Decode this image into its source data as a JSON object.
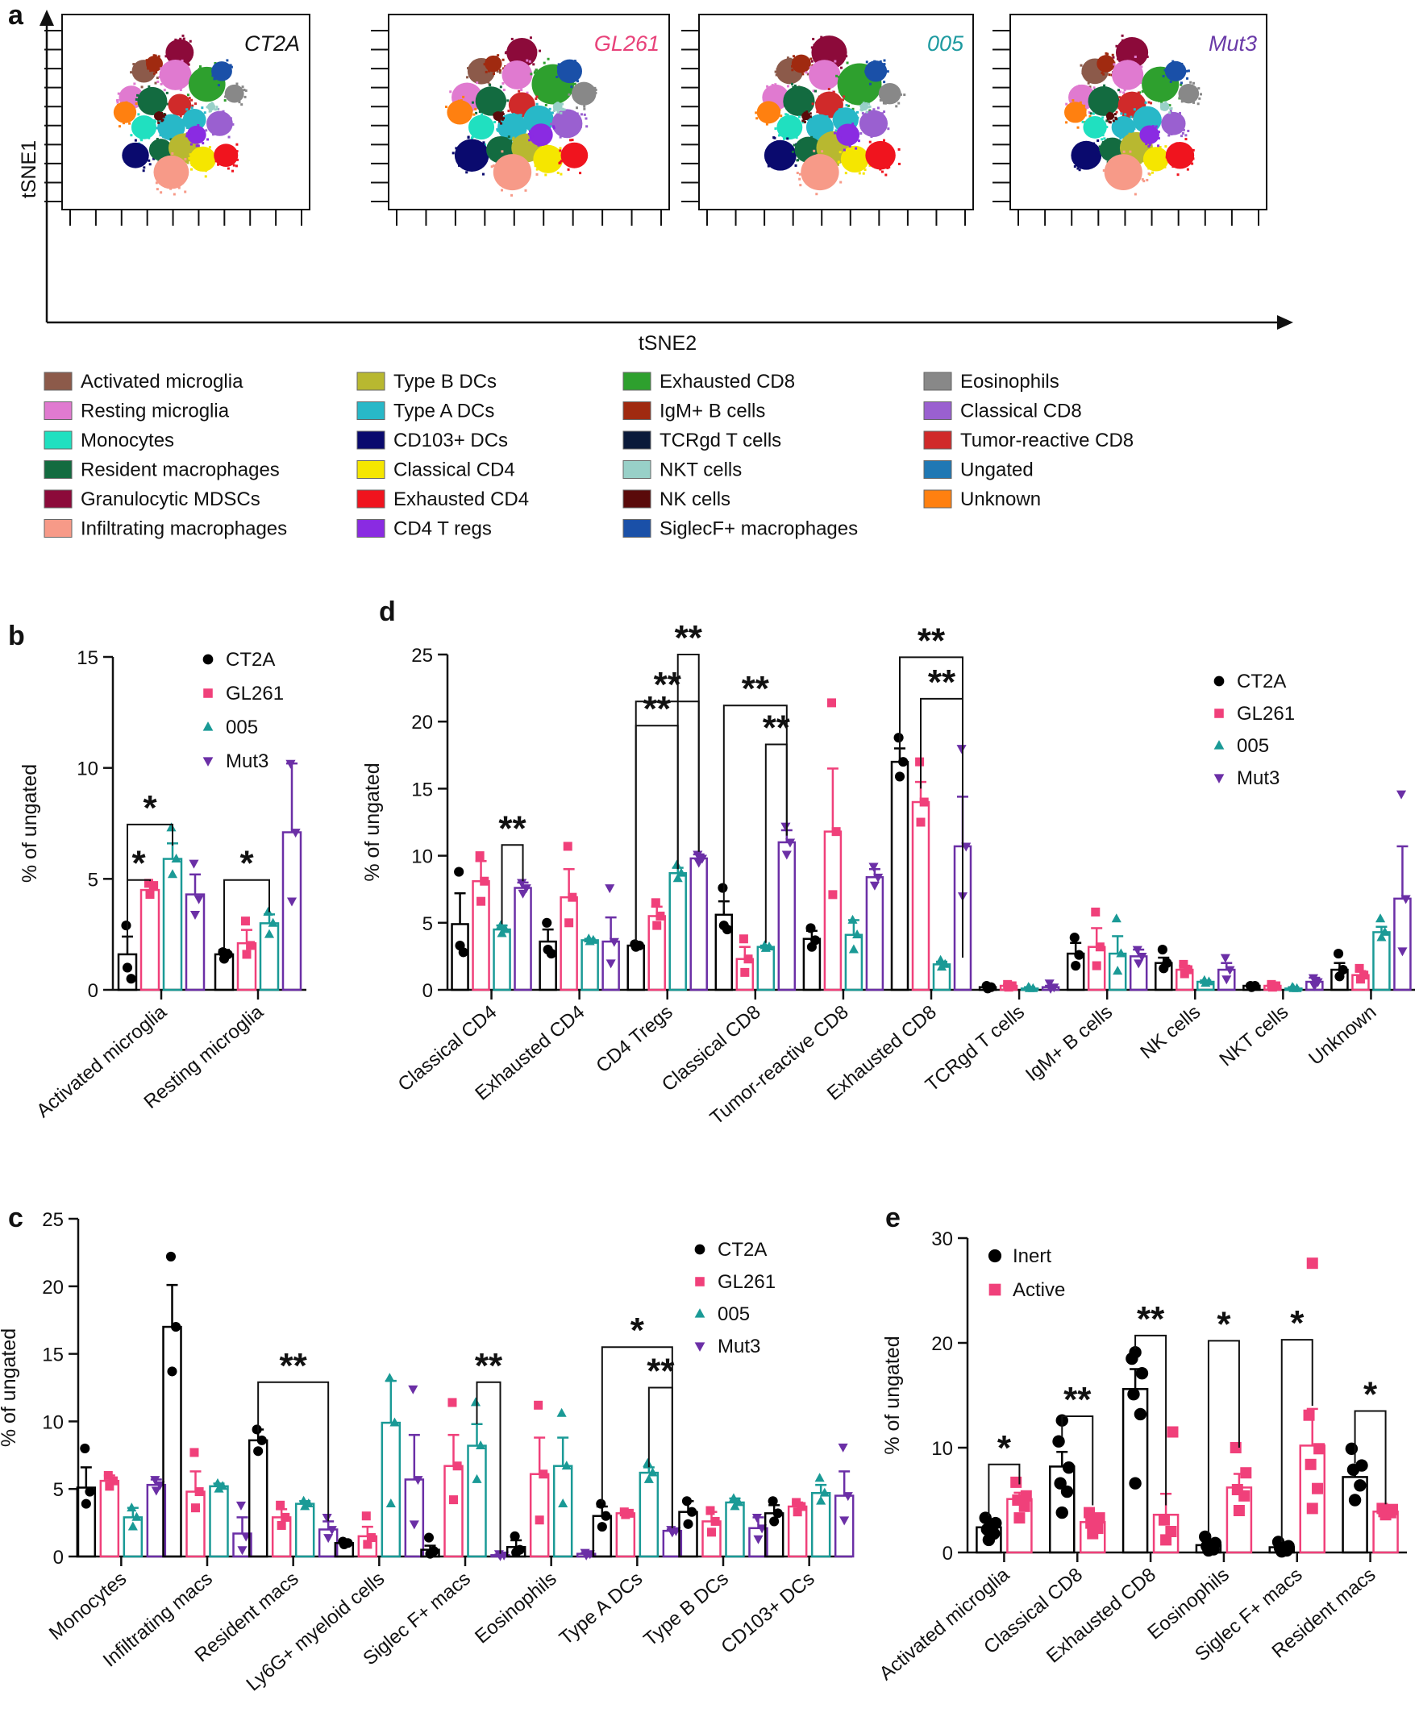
{
  "panels": {
    "a": "a",
    "b": "b",
    "c": "c",
    "d": "d",
    "e": "e"
  },
  "colors": {
    "CT2A": "#000000",
    "GL261": "#f0407a",
    "005": "#1a9a96",
    "Mut3": "#6b2fa6",
    "Inert": "#000000",
    "Active": "#f0407a"
  },
  "panel_a": {
    "xlabel": "tSNE2",
    "ylabel": "tSNE1",
    "conditions": [
      {
        "name": "CT2A",
        "color": "#111111"
      },
      {
        "name": "GL261",
        "color": "#e8427a"
      },
      {
        "name": "005",
        "color": "#1e9aa0"
      },
      {
        "name": "Mut3",
        "color": "#6a3aa8"
      }
    ],
    "clusters": [
      {
        "name": "Activated microglia",
        "color": "#8c5a4a"
      },
      {
        "name": "Resting microglia",
        "color": "#e07ad0"
      },
      {
        "name": "Monocytes",
        "color": "#20e0c0"
      },
      {
        "name": "Resident macrophages",
        "color": "#136b40"
      },
      {
        "name": "Granulocytic MDSCs",
        "color": "#8c0a3a"
      },
      {
        "name": "Infiltrating macrophages",
        "color": "#f79a88"
      },
      {
        "name": "Type B DCs",
        "color": "#b8b830"
      },
      {
        "name": "Type A DCs",
        "color": "#28b8c8"
      },
      {
        "name": "CD103+ DCs",
        "color": "#0a0a6e"
      },
      {
        "name": "Classical CD4",
        "color": "#f5e600"
      },
      {
        "name": "Exhausted CD4",
        "color": "#f0141e"
      },
      {
        "name": "CD4 T regs",
        "color": "#8a2be2"
      },
      {
        "name": "Exhausted CD8",
        "color": "#2ea02e"
      },
      {
        "name": "IgM+ B cells",
        "color": "#a02a10"
      },
      {
        "name": "TCRgd T cells",
        "color": "#0a1a3a"
      },
      {
        "name": "NKT cells",
        "color": "#98d0c8"
      },
      {
        "name": "NK cells",
        "color": "#5a0a0a"
      },
      {
        "name": "SiglecF+ macrophages",
        "color": "#1a50a8"
      },
      {
        "name": "Eosinophils",
        "color": "#888888"
      },
      {
        "name": "Classical CD8",
        "color": "#9a60d0"
      },
      {
        "name": "Tumor-reactive CD8",
        "color": "#d02a2a"
      },
      {
        "name": "Ungated",
        "color": "#1f78b4"
      },
      {
        "name": "Unknown",
        "color": "#ff8010"
      }
    ]
  },
  "chart_data": [
    {
      "id": "b",
      "type": "bar",
      "ylabel": "% of ungated",
      "ylim": [
        0,
        15
      ],
      "yticks": [
        0,
        5,
        10,
        15
      ],
      "categories": [
        "Activated microglia",
        "Resting microglia"
      ],
      "series": [
        {
          "name": "CT2A",
          "values": [
            1.6,
            1.6
          ],
          "sem": [
            0.8,
            0.2
          ],
          "points": [
            [
              1.0,
              0.5,
              2.9
            ],
            [
              1.4,
              1.6,
              1.7
            ]
          ]
        },
        {
          "name": "GL261",
          "values": [
            4.5,
            2.1
          ],
          "sem": [
            0.3,
            0.6
          ],
          "points": [
            [
              4.3,
              4.7,
              4.8
            ],
            [
              1.6,
              2.0,
              3.1
            ]
          ]
        },
        {
          "name": "005",
          "values": [
            5.9,
            3.0
          ],
          "sem": [
            0.7,
            0.4
          ],
          "points": [
            [
              5.2,
              5.9,
              7.3
            ],
            [
              2.5,
              3.0,
              3.5
            ]
          ]
        },
        {
          "name": "Mut3",
          "values": [
            4.3,
            7.1
          ],
          "sem": [
            0.9,
            3.1
          ],
          "points": [
            [
              3.4,
              4.1,
              5.7
            ],
            [
              4.0,
              7.1,
              10.2
            ]
          ]
        }
      ],
      "legend": [
        "CT2A",
        "GL261",
        "005",
        "Mut3"
      ],
      "annotations": [
        "*",
        "*",
        "*"
      ]
    },
    {
      "id": "d",
      "type": "bar",
      "ylabel": "% of ungated",
      "ylim": [
        0,
        25
      ],
      "yticks": [
        0,
        5,
        10,
        15,
        20,
        25
      ],
      "categories": [
        "Classical CD4",
        "Exhausted CD4",
        "CD4 Tregs",
        "Classical CD8",
        "Tumor-reactive CD8",
        "Exhausted CD8",
        "TCRgd T cells",
        "IgM+ B cells",
        "NK cells",
        "NKT cells",
        "Unknown"
      ],
      "series": [
        {
          "name": "CT2A",
          "values": [
            4.9,
            3.6,
            3.3,
            5.6,
            3.8,
            17.0,
            0.2,
            2.7,
            2.0,
            0.3,
            1.5
          ],
          "sem": [
            2.3,
            0.9,
            0.1,
            1.0,
            0.6,
            1.0,
            0.1,
            0.8,
            0.4,
            0.1,
            0.5
          ],
          "points": [
            [
              3.3,
              2.8,
              8.8
            ],
            [
              3.0,
              2.7,
              5.0
            ],
            [
              3.2,
              3.3,
              3.4
            ],
            [
              4.8,
              4.5,
              7.6
            ],
            [
              3.2,
              3.7,
              4.6
            ],
            [
              15.9,
              17.0,
              18.8
            ],
            [
              0.1,
              0.2,
              0.3
            ],
            [
              1.8,
              2.6,
              3.9
            ],
            [
              1.6,
              2.0,
              3.0
            ],
            [
              0.2,
              0.3,
              0.3
            ],
            [
              1.0,
              1.5,
              2.7
            ]
          ]
        },
        {
          "name": "GL261",
          "values": [
            8.1,
            6.9,
            5.5,
            2.3,
            11.8,
            14.0,
            0.3,
            3.2,
            1.5,
            0.3,
            1.1
          ],
          "sem": [
            1.5,
            2.1,
            0.7,
            0.9,
            4.7,
            1.5,
            0.1,
            1.4,
            0.3,
            0.1,
            0.3
          ],
          "points": [
            [
              6.6,
              8.1,
              10.0
            ],
            [
              5.0,
              6.9,
              10.7
            ],
            [
              4.8,
              5.5,
              6.5
            ],
            [
              1.3,
              2.3,
              3.8
            ],
            [
              7.1,
              11.8,
              21.4
            ],
            [
              12.5,
              14.0,
              17.0
            ],
            [
              0.2,
              0.3,
              0.4
            ],
            [
              1.8,
              3.2,
              5.8
            ],
            [
              1.2,
              1.5,
              1.9
            ],
            [
              0.2,
              0.3,
              0.4
            ],
            [
              0.8,
              1.1,
              1.6
            ]
          ]
        },
        {
          "name": "005",
          "values": [
            4.5,
            3.7,
            8.7,
            3.2,
            4.1,
            1.9,
            0.1,
            2.7,
            0.6,
            0.1,
            4.3
          ],
          "sem": [
            0.3,
            0.1,
            0.4,
            0.1,
            1.1,
            0.2,
            0.1,
            1.3,
            0.1,
            0.1,
            0.4
          ],
          "points": [
            [
              4.2,
              4.5,
              4.8
            ],
            [
              3.6,
              3.7,
              3.8
            ],
            [
              8.3,
              8.7,
              9.3
            ],
            [
              3.1,
              3.2,
              3.3
            ],
            [
              3.0,
              4.1,
              5.2
            ],
            [
              1.7,
              1.9,
              2.2
            ],
            [
              0.1,
              0.1,
              0.2
            ],
            [
              1.4,
              2.7,
              5.3
            ],
            [
              0.5,
              0.6,
              0.7
            ],
            [
              0.1,
              0.1,
              0.2
            ],
            [
              3.9,
              4.3,
              5.3
            ]
          ]
        },
        {
          "name": "Mut3",
          "values": [
            7.6,
            3.6,
            9.8,
            11.0,
            8.4,
            10.7,
            0.2,
            2.5,
            1.5,
            0.6,
            6.8
          ],
          "sem": [
            0.4,
            1.8,
            0.3,
            0.9,
            0.6,
            3.7,
            0.1,
            0.5,
            0.5,
            0.3,
            3.9
          ],
          "points": [
            [
              7.2,
              7.6,
              8.0
            ],
            [
              2.0,
              3.6,
              7.6
            ],
            [
              9.5,
              9.8,
              10.1
            ],
            [
              10.1,
              11.0,
              12.2
            ],
            [
              7.8,
              8.4,
              9.2
            ],
            [
              7.0,
              10.7,
              18.0
            ],
            [
              0.1,
              0.2,
              0.5
            ],
            [
              2.0,
              2.5,
              3.0
            ],
            [
              0.8,
              1.5,
              2.4
            ],
            [
              0.3,
              0.6,
              0.9
            ],
            [
              2.9,
              6.8,
              14.6
            ]
          ]
        }
      ],
      "legend": [
        "CT2A",
        "GL261",
        "005",
        "Mut3"
      ],
      "annotations": [
        "**",
        "**",
        "**",
        "**",
        "**",
        "**",
        "**",
        "**"
      ]
    },
    {
      "id": "c",
      "type": "bar",
      "ylabel": "% of ungated",
      "ylim": [
        0,
        25
      ],
      "yticks": [
        0,
        5,
        10,
        15,
        20,
        25
      ],
      "categories": [
        "Monocytes",
        "Infiltrating macs",
        "Resident macs",
        "Ly6G+ myeloid cells",
        "Siglec F+ macs",
        "Eosinophils",
        "Type A DCs",
        "Type B DCs",
        "CD103+ DCs"
      ],
      "series": [
        {
          "name": "CT2A",
          "values": [
            5.1,
            17.0,
            8.6,
            1.0,
            0.5,
            0.7,
            3.0,
            3.3,
            3.2
          ],
          "sem": [
            1.5,
            3.1,
            0.8,
            0.1,
            0.3,
            0.5,
            0.7,
            0.8,
            0.6
          ],
          "points": [
            [
              3.9,
              4.8,
              8.0
            ],
            [
              13.7,
              17.0,
              22.2
            ],
            [
              7.8,
              8.6,
              9.4
            ],
            [
              0.9,
              1.0,
              1.1
            ],
            [
              0.2,
              0.4,
              1.4
            ],
            [
              0.3,
              0.5,
              1.5
            ],
            [
              2.2,
              3.0,
              3.9
            ],
            [
              2.4,
              3.3,
              4.1
            ],
            [
              2.6,
              3.2,
              4.1
            ]
          ]
        },
        {
          "name": "GL261",
          "values": [
            5.6,
            4.8,
            2.9,
            1.5,
            6.7,
            6.1,
            3.2,
            2.6,
            3.7
          ],
          "sem": [
            0.4,
            1.5,
            0.6,
            0.7,
            2.3,
            2.7,
            0.1,
            0.7,
            0.3
          ],
          "points": [
            [
              5.2,
              5.6,
              6.0
            ],
            [
              3.6,
              4.8,
              7.7
            ],
            [
              2.3,
              2.9,
              3.8
            ],
            [
              0.9,
              1.4,
              3.0
            ],
            [
              4.2,
              6.7,
              11.4
            ],
            [
              2.7,
              6.1,
              11.2
            ],
            [
              3.1,
              3.2,
              3.3
            ],
            [
              1.8,
              2.6,
              3.4
            ],
            [
              3.3,
              3.7,
              4.0
            ]
          ]
        },
        {
          "name": "005",
          "values": [
            2.9,
            5.2,
            3.9,
            9.9,
            8.2,
            6.7,
            6.2,
            4.0,
            4.7
          ],
          "sem": [
            0.7,
            0.2,
            0.2,
            3.1,
            1.6,
            2.1,
            0.4,
            0.3,
            0.6
          ],
          "points": [
            [
              2.2,
              2.9,
              3.6
            ],
            [
              5.0,
              5.2,
              5.4
            ],
            [
              3.7,
              3.9,
              4.1
            ],
            [
              3.9,
              9.9,
              13.2
            ],
            [
              5.7,
              8.2,
              11.4
            ],
            [
              3.9,
              6.7,
              10.6
            ],
            [
              5.7,
              6.2,
              6.9
            ],
            [
              3.7,
              4.0,
              4.3
            ],
            [
              4.1,
              4.7,
              5.8
            ]
          ]
        },
        {
          "name": "Mut3",
          "values": [
            5.3,
            1.7,
            2.0,
            5.7,
            0.1,
            0.2,
            1.9,
            2.1,
            4.5
          ],
          "sem": [
            0.4,
            1.2,
            0.6,
            3.3,
            0.05,
            0.05,
            0.1,
            0.8,
            1.8
          ],
          "points": [
            [
              4.9,
              5.3,
              5.7
            ],
            [
              0.5,
              1.5,
              3.8
            ],
            [
              1.4,
              2.0,
              2.9
            ],
            [
              2.4,
              5.7,
              12.4
            ],
            [
              0.05,
              0.1,
              0.2
            ],
            [
              0.1,
              0.2,
              0.3
            ],
            [
              1.8,
              1.9,
              2.0
            ],
            [
              1.3,
              2.1,
              2.9
            ],
            [
              2.7,
              4.5,
              8.1
            ]
          ]
        }
      ],
      "legend": [
        "CT2A",
        "GL261",
        "005",
        "Mut3"
      ],
      "annotations": [
        "**",
        "**",
        "*",
        "**"
      ]
    },
    {
      "id": "e",
      "type": "bar",
      "ylabel": "% of ungated",
      "ylim": [
        0,
        30
      ],
      "yticks": [
        0,
        10,
        20,
        30
      ],
      "categories": [
        "Activated microglia",
        "Classical CD8",
        "Exhausted CD8",
        "Eosinophils",
        "Siglec F+ macs",
        "Resident macs"
      ],
      "series": [
        {
          "name": "Inert",
          "values": [
            2.4,
            8.2,
            15.6,
            0.7,
            0.5,
            7.2
          ],
          "sem": [
            0.5,
            1.4,
            1.9,
            0.3,
            0.2,
            1.0
          ],
          "points": [
            [
              1.2,
              1.8,
              2.2,
              2.8,
              3.3
            ],
            [
              3.8,
              5.8,
              6.6,
              8.1,
              10.6,
              12.6
            ],
            [
              6.6,
              13.2,
              15.1,
              17.1,
              18.5,
              19.1
            ],
            [
              0.2,
              0.3,
              0.6,
              0.9,
              1.5
            ],
            [
              0.1,
              0.2,
              0.4,
              0.6,
              1.0
            ],
            [
              5.0,
              6.4,
              7.9,
              8.3,
              9.9
            ]
          ]
        },
        {
          "name": "Active",
          "values": [
            5.1,
            2.9,
            3.6,
            6.2,
            10.2,
            3.9
          ],
          "sem": [
            0.6,
            0.6,
            2.0,
            1.3,
            3.5,
            0.2
          ],
          "points": [
            [
              3.3,
              4.4,
              5.0,
              5.4,
              6.7
            ],
            [
              1.8,
              2.3,
              2.8,
              3.3,
              3.8
            ],
            [
              1.2,
              2.0,
              3.1,
              11.5
            ],
            [
              4.0,
              5.4,
              6.0,
              7.6,
              10.0
            ],
            [
              4.2,
              6.1,
              8.4,
              9.9,
              13.1,
              27.6
            ],
            [
              3.6,
              3.8,
              3.9,
              4.1,
              4.2
            ]
          ]
        }
      ],
      "legend": [
        "Inert",
        "Active"
      ],
      "annotations": [
        "*",
        "**",
        "**",
        "*",
        "*",
        "*"
      ]
    }
  ]
}
